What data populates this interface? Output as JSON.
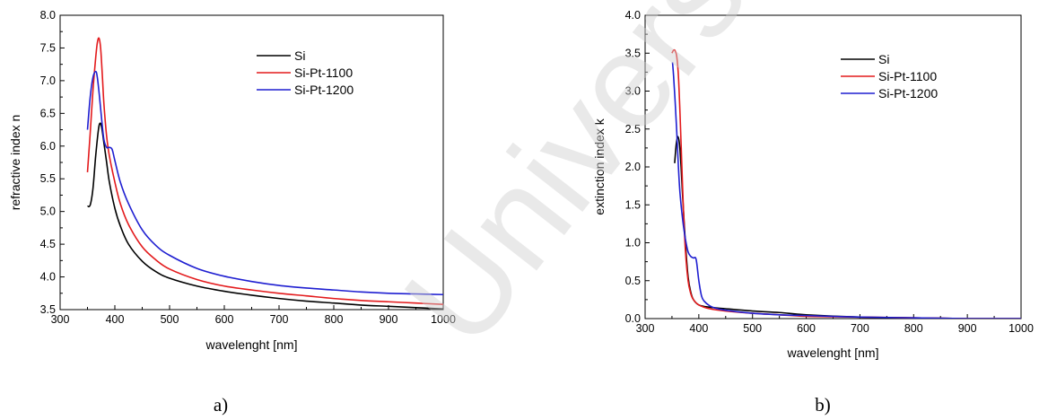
{
  "watermark": {
    "text": "University"
  },
  "chart_data": [
    {
      "type": "line",
      "panel_label": "a)",
      "xlabel": "wavelenght [nm]",
      "ylabel": "refractive index n",
      "xlim": [
        300,
        1000
      ],
      "ylim": [
        3.5,
        8.0
      ],
      "xticks": [
        300,
        400,
        500,
        600,
        700,
        800,
        900,
        1000
      ],
      "yticks": [
        3.5,
        4.0,
        4.5,
        5.0,
        5.5,
        6.0,
        6.5,
        7.0,
        7.5,
        8.0
      ],
      "xtick_labels": [
        "300",
        "400",
        "500",
        "600",
        "700",
        "800",
        "900",
        "1000"
      ],
      "ytick_labels": [
        "3.5",
        "4.0",
        "4.5",
        "5.0",
        "5.5",
        "6.0",
        "6.5",
        "7.0",
        "7.5",
        "8.0"
      ],
      "legend_position": "top-right",
      "series": [
        {
          "name": "Si",
          "color": "#000000",
          "x": [
            350,
            355,
            360,
            365,
            370,
            373,
            376,
            380,
            385,
            390,
            400,
            410,
            425,
            450,
            475,
            500,
            550,
            600,
            650,
            700,
            750,
            800,
            850,
            900,
            950,
            1000
          ],
          "y": [
            5.08,
            5.1,
            5.35,
            5.85,
            6.25,
            6.35,
            6.28,
            6.05,
            5.75,
            5.45,
            5.05,
            4.78,
            4.5,
            4.24,
            4.08,
            3.98,
            3.86,
            3.78,
            3.72,
            3.67,
            3.63,
            3.6,
            3.57,
            3.55,
            3.53,
            3.51
          ]
        },
        {
          "name": "Si-Pt-1100",
          "color": "#e31a1c",
          "x": [
            350,
            355,
            360,
            365,
            368,
            371,
            374,
            377,
            380,
            385,
            390,
            400,
            410,
            425,
            450,
            475,
            500,
            550,
            600,
            650,
            700,
            750,
            800,
            850,
            900,
            950,
            1000
          ],
          "y": [
            5.6,
            6.2,
            6.85,
            7.35,
            7.58,
            7.65,
            7.5,
            7.1,
            6.65,
            6.15,
            5.85,
            5.45,
            5.12,
            4.8,
            4.46,
            4.26,
            4.12,
            3.96,
            3.86,
            3.8,
            3.75,
            3.71,
            3.67,
            3.64,
            3.62,
            3.6,
            3.58
          ]
        },
        {
          "name": "Si-Pt-1200",
          "color": "#1f1fd1",
          "x": [
            350,
            355,
            360,
            365,
            368,
            372,
            376,
            380,
            385,
            390,
            395,
            400,
            410,
            425,
            450,
            475,
            500,
            550,
            600,
            650,
            700,
            750,
            800,
            850,
            900,
            950,
            1000
          ],
          "y": [
            6.25,
            6.75,
            7.05,
            7.14,
            7.05,
            6.75,
            6.4,
            6.1,
            5.98,
            5.98,
            5.95,
            5.78,
            5.45,
            5.12,
            4.72,
            4.48,
            4.33,
            4.13,
            4.01,
            3.93,
            3.87,
            3.83,
            3.8,
            3.77,
            3.75,
            3.74,
            3.73
          ]
        }
      ]
    },
    {
      "type": "line",
      "panel_label": "b)",
      "xlabel": "wavelenght [nm]",
      "ylabel": "extinction index k",
      "xlim": [
        300,
        1000
      ],
      "ylim": [
        0.0,
        4.0
      ],
      "xticks": [
        300,
        400,
        500,
        600,
        700,
        800,
        900,
        1000
      ],
      "yticks": [
        0.0,
        0.5,
        1.0,
        1.5,
        2.0,
        2.5,
        3.0,
        3.5,
        4.0
      ],
      "xtick_labels": [
        "300",
        "400",
        "500",
        "600",
        "700",
        "800",
        "900",
        "1000"
      ],
      "ytick_labels": [
        "0.0",
        "0.5",
        "1.0",
        "1.5",
        "2.0",
        "2.5",
        "3.0",
        "3.5",
        "4.0"
      ],
      "legend_position": "top-right",
      "series": [
        {
          "name": "Si",
          "color": "#000000",
          "x": [
            355,
            358,
            361,
            364,
            367,
            370,
            375,
            380,
            385,
            390,
            400,
            420,
            450,
            500,
            550,
            600,
            700,
            800,
            900,
            1000
          ],
          "y": [
            2.05,
            2.3,
            2.4,
            2.3,
            2.0,
            1.6,
            1.0,
            0.55,
            0.35,
            0.25,
            0.18,
            0.15,
            0.13,
            0.1,
            0.08,
            0.05,
            0.02,
            0.01,
            0.0,
            0.0
          ]
        },
        {
          "name": "Si-Pt-1100",
          "color": "#e31a1c",
          "x": [
            350,
            353,
            356,
            359,
            362,
            365,
            368,
            371,
            375,
            380,
            385,
            390,
            400,
            420,
            450,
            500,
            550,
            600,
            700,
            800,
            900,
            1000
          ],
          "y": [
            3.5,
            3.54,
            3.53,
            3.45,
            3.2,
            2.7,
            2.1,
            1.5,
            0.9,
            0.5,
            0.33,
            0.25,
            0.18,
            0.13,
            0.1,
            0.07,
            0.05,
            0.03,
            0.02,
            0.01,
            0.0,
            0.0
          ]
        },
        {
          "name": "Si-Pt-1200",
          "color": "#1f1fd1",
          "x": [
            351,
            353,
            356,
            359,
            362,
            365,
            370,
            375,
            380,
            385,
            390,
            395,
            400,
            405,
            410,
            420,
            430,
            450,
            500,
            550,
            600,
            700,
            800,
            900,
            1000
          ],
          "y": [
            3.38,
            3.2,
            2.85,
            2.45,
            2.0,
            1.65,
            1.3,
            1.05,
            0.88,
            0.82,
            0.8,
            0.78,
            0.5,
            0.3,
            0.23,
            0.17,
            0.14,
            0.11,
            0.07,
            0.05,
            0.04,
            0.02,
            0.01,
            0.0,
            0.0
          ]
        }
      ]
    }
  ]
}
